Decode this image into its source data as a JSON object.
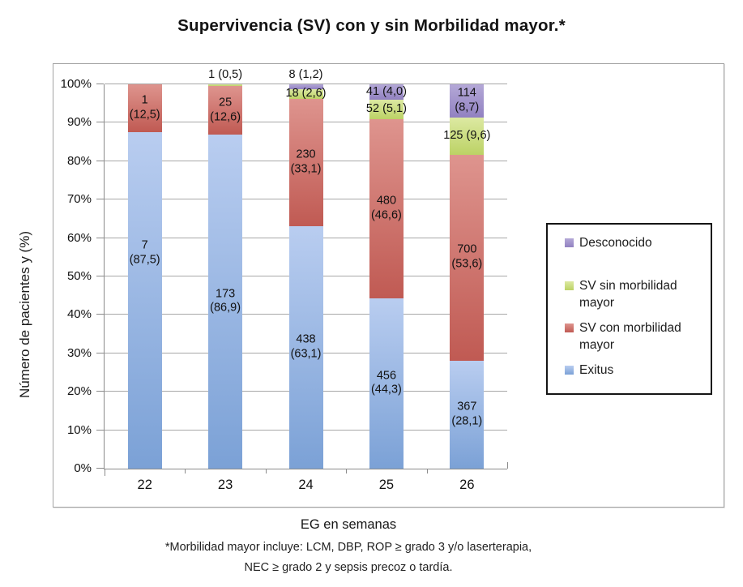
{
  "title": "Supervivencia (SV) con y sin Morbilidad mayor.*",
  "chart_data": {
    "type": "bar",
    "variant": "stacked-100-percent",
    "title": "Supervivencia (SV) con y sin Morbilidad mayor.*",
    "xlabel": "EG en semanas",
    "ylabel": "Número de pacientes y (%)",
    "footnote_line1": "*Morbilidad mayor incluye: LCM, DBP, ROP ≥  grado 3 y/o laserterapia,",
    "footnote_line2": "NEC ≥  grado 2 y sepsis precoz o tardía.",
    "ylim": [
      0,
      100
    ],
    "grid": true,
    "ytick_labels": [
      "0%",
      "10%",
      "20%",
      "30%",
      "40%",
      "50%",
      "60%",
      "70%",
      "80%",
      "90%",
      "100%"
    ],
    "categories": [
      "22",
      "23",
      "24",
      "25",
      "26"
    ],
    "series": [
      {
        "key": "exitus",
        "name": "Exitus",
        "counts": [
          7,
          173,
          438,
          456,
          367
        ],
        "percents": [
          87.5,
          86.9,
          63.1,
          44.3,
          28.1
        ]
      },
      {
        "key": "sv_con",
        "name": "SV con morbilidad mayor",
        "counts": [
          1,
          25,
          230,
          480,
          700
        ],
        "percents": [
          12.5,
          12.6,
          33.1,
          46.6,
          53.6
        ]
      },
      {
        "key": "sv_sin",
        "name": "SV sin morbilidad mayor",
        "counts": [
          null,
          1,
          18,
          52,
          125
        ],
        "percents": [
          null,
          0.5,
          2.6,
          5.1,
          9.6
        ]
      },
      {
        "key": "desconocido",
        "name": "Desconocido",
        "counts": [
          null,
          null,
          8,
          41,
          114
        ],
        "percents": [
          null,
          null,
          1.2,
          4.0,
          8.7
        ]
      }
    ],
    "colors": {
      "exitus": {
        "top": "#b9cdf0",
        "bottom": "#7ba1d6"
      },
      "sv_con": {
        "top": "#de948e",
        "bottom": "#c05a53"
      },
      "sv_sin": {
        "top": "#dce9a2",
        "bottom": "#bcd265"
      },
      "desconocido": {
        "top": "#b4a8d7",
        "bottom": "#9181c1"
      }
    },
    "bars": [
      {
        "category": "22",
        "above_label": null,
        "segments": [
          {
            "series": "exitus",
            "pct": 87.5,
            "label": "7\n(87,5)",
            "label_at_pct": 56
          },
          {
            "series": "sv_con",
            "pct": 12.5,
            "label": "1\n(12,5)"
          }
        ]
      },
      {
        "category": "23",
        "above_label": "1 (0,5)",
        "segments": [
          {
            "series": "exitus",
            "pct": 86.9,
            "label": "173\n(86,9)"
          },
          {
            "series": "sv_con",
            "pct": 12.6,
            "label": "25\n(12,6)"
          },
          {
            "series": "sv_sin",
            "pct": 0.5,
            "label": null
          }
        ]
      },
      {
        "category": "24",
        "above_label": "8 (1,2)",
        "segments": [
          {
            "series": "exitus",
            "pct": 63.1,
            "label": "438\n(63,1)"
          },
          {
            "series": "sv_con",
            "pct": 33.1,
            "label": "230\n(33,1)"
          },
          {
            "series": "sv_sin",
            "pct": 2.6,
            "label": "18 (2,6)"
          },
          {
            "series": "desconocido",
            "pct": 1.2,
            "label": null
          }
        ]
      },
      {
        "category": "25",
        "above_label": null,
        "segments": [
          {
            "series": "exitus",
            "pct": 44.3,
            "label": "456\n(44,3)"
          },
          {
            "series": "sv_con",
            "pct": 46.6,
            "label": "480\n(46,6)"
          },
          {
            "series": "sv_sin",
            "pct": 5.1,
            "label": "52 (5,1)"
          },
          {
            "series": "desconocido",
            "pct": 4.0,
            "label": "41 (4,0)"
          }
        ]
      },
      {
        "category": "26",
        "above_label": null,
        "segments": [
          {
            "series": "exitus",
            "pct": 28.1,
            "label": "367\n(28,1)"
          },
          {
            "series": "sv_con",
            "pct": 53.6,
            "label": "700\n(53,6)"
          },
          {
            "series": "sv_sin",
            "pct": 9.6,
            "label": "125 (9,6)"
          },
          {
            "series": "desconocido",
            "pct": 8.7,
            "label": "114\n(8,7)"
          }
        ]
      }
    ]
  },
  "legend": {
    "items": [
      {
        "label": "Desconocido",
        "color_key": "desconocido"
      },
      {
        "label": "SV sin morbilidad mayor",
        "color_key": "sv_sin"
      },
      {
        "label": "SV con morbilidad mayor",
        "color_key": "sv_con"
      },
      {
        "label": "Exitus",
        "color_key": "exitus"
      }
    ]
  }
}
